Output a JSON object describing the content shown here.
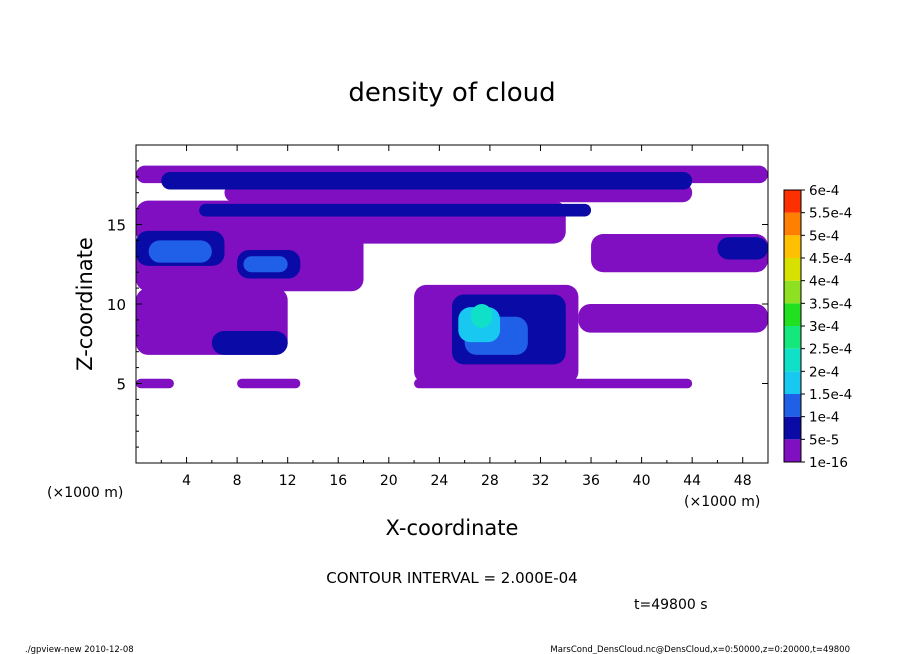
{
  "chart_data": {
    "type": "heatmap",
    "title": "density of cloud",
    "xlabel": "X-coordinate",
    "ylabel": "Z-coordinate",
    "x_unit": "(×1000 m)",
    "xlim": [
      0,
      50
    ],
    "ylim": [
      0,
      20
    ],
    "x_ticks": [
      4,
      8,
      12,
      16,
      20,
      24,
      28,
      32,
      36,
      40,
      44,
      48
    ],
    "y_ticks": [
      5,
      10,
      15
    ],
    "colorbar": {
      "levels": [
        "1e-16",
        "5e-5",
        "1e-4",
        "1.5e-4",
        "2e-4",
        "2.5e-4",
        "3e-4",
        "3.5e-4",
        "4e-4",
        "4.5e-4",
        "5e-4",
        "5.5e-4",
        "6e-4"
      ],
      "colors": [
        "#7f0fc0",
        "#0a0aa6",
        "#2060e8",
        "#19c8f0",
        "#10e0c8",
        "#14e87c",
        "#20e020",
        "#8fe020",
        "#d8e000",
        "#ffc000",
        "#ff8000",
        "#ff3000",
        "#ff8080"
      ]
    },
    "contour_interval": "CONTOUR INTERVAL = 2.000E-04",
    "time": "t=49800 s",
    "footer_left": "./gpview-new  2010-12-08",
    "footer_right": "MarsCond_DensCloud.nc@DensCloud,x=0:50000,z=0:20000,t=49800",
    "regions": [
      {
        "level": 0,
        "x": [
          0,
          50
        ],
        "z": [
          17.6,
          18.7
        ]
      },
      {
        "level": 0,
        "x": [
          7,
          44
        ],
        "z": [
          16.4,
          17.6
        ]
      },
      {
        "level": 0,
        "x": [
          0,
          34
        ],
        "z": [
          13.8,
          16.5
        ]
      },
      {
        "level": 0,
        "x": [
          0,
          18
        ],
        "z": [
          10.8,
          14.5
        ]
      },
      {
        "level": 0,
        "x": [
          36,
          50
        ],
        "z": [
          12.0,
          14.4
        ]
      },
      {
        "level": 0,
        "x": [
          0,
          12
        ],
        "z": [
          6.8,
          11.0
        ]
      },
      {
        "level": 0,
        "x": [
          22,
          35
        ],
        "z": [
          5.0,
          11.2
        ]
      },
      {
        "level": 0,
        "x": [
          35,
          50
        ],
        "z": [
          8.2,
          10.0
        ]
      },
      {
        "level": 0,
        "x": [
          0,
          3
        ],
        "z": [
          4.7,
          5.3
        ]
      },
      {
        "level": 0,
        "x": [
          8,
          13
        ],
        "z": [
          4.7,
          5.3
        ]
      },
      {
        "level": 0,
        "x": [
          22,
          44
        ],
        "z": [
          4.7,
          5.3
        ]
      },
      {
        "level": 1,
        "x": [
          2,
          44
        ],
        "z": [
          17.2,
          18.3
        ]
      },
      {
        "level": 1,
        "x": [
          5,
          36
        ],
        "z": [
          15.5,
          16.3
        ]
      },
      {
        "level": 1,
        "x": [
          0,
          7
        ],
        "z": [
          12.4,
          14.6
        ]
      },
      {
        "level": 1,
        "x": [
          8,
          13
        ],
        "z": [
          11.6,
          13.4
        ]
      },
      {
        "level": 1,
        "x": [
          46,
          50
        ],
        "z": [
          12.8,
          14.2
        ]
      },
      {
        "level": 1,
        "x": [
          6,
          12
        ],
        "z": [
          6.8,
          8.3
        ]
      },
      {
        "level": 1,
        "x": [
          25,
          34
        ],
        "z": [
          6.2,
          10.6
        ]
      },
      {
        "level": 2,
        "x": [
          1,
          6
        ],
        "z": [
          12.6,
          14.0
        ]
      },
      {
        "level": 2,
        "x": [
          8.5,
          12
        ],
        "z": [
          12.0,
          13.0
        ]
      },
      {
        "level": 2,
        "x": [
          26,
          31
        ],
        "z": [
          6.8,
          9.2
        ]
      },
      {
        "level": 3,
        "x": [
          25.5,
          28.8
        ],
        "z": [
          7.6,
          9.8
        ]
      },
      {
        "level": 4,
        "x": [
          26.5,
          28.2
        ],
        "z": [
          8.5,
          10.0
        ]
      }
    ]
  }
}
